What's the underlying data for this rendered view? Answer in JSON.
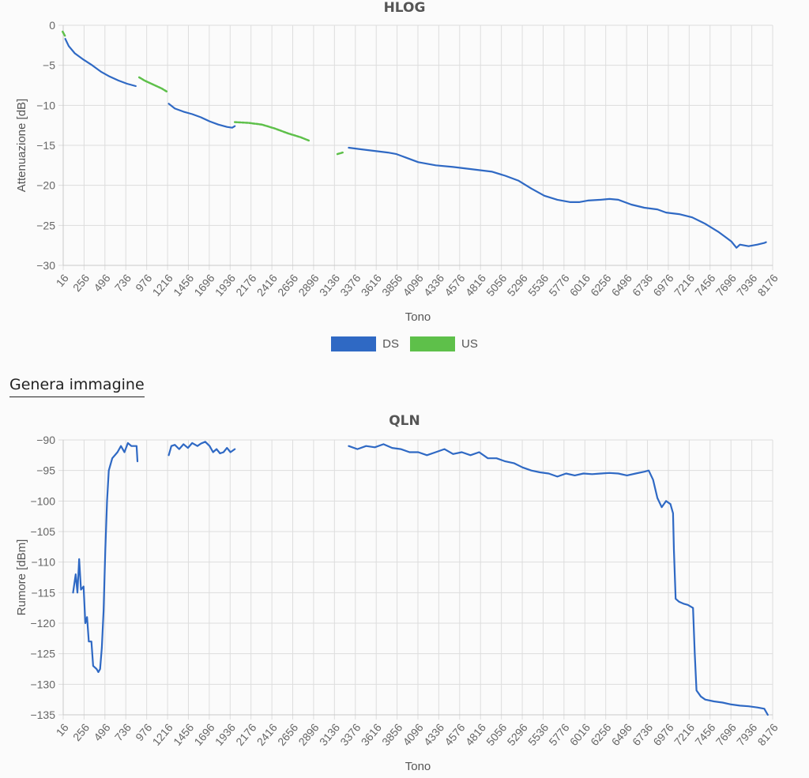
{
  "generate_link": "Genera immagine",
  "colors": {
    "ds": "#2f69c4",
    "us": "#5ec04a",
    "grid": "#dddddd"
  },
  "chart_data": [
    {
      "type": "line",
      "title": "HLOG",
      "xlabel": "Tono",
      "ylabel": "Attenuazione [dB]",
      "xticks": [
        "16",
        "256",
        "496",
        "736",
        "976",
        "1216",
        "1456",
        "1696",
        "1936",
        "2176",
        "2416",
        "2656",
        "2896",
        "3136",
        "3376",
        "3616",
        "3856",
        "4096",
        "4336",
        "4576",
        "4816",
        "5056",
        "5296",
        "5536",
        "5776",
        "6016",
        "6256",
        "6496",
        "6736",
        "6976",
        "7216",
        "7456",
        "7696",
        "7936",
        "8176"
      ],
      "yticks": [
        0,
        -5,
        -10,
        -15,
        -20,
        -25,
        -30
      ],
      "xlim": [
        16,
        8176
      ],
      "ylim": [
        -30,
        0
      ],
      "legend": [
        "DS",
        "US"
      ],
      "legend_position": "bottom",
      "series": [
        {
          "name": "DS",
          "segments": [
            [
              [
                40,
                -1.7
              ],
              [
                80,
                -2.6
              ],
              [
                150,
                -3.5
              ],
              [
                250,
                -4.3
              ],
              [
                350,
                -5.0
              ],
              [
                450,
                -5.8
              ],
              [
                550,
                -6.4
              ],
              [
                650,
                -6.9
              ],
              [
                750,
                -7.3
              ],
              [
                850,
                -7.6
              ]
            ],
            [
              [
                1230,
                -9.8
              ],
              [
                1300,
                -10.4
              ],
              [
                1400,
                -10.8
              ],
              [
                1500,
                -11.1
              ],
              [
                1600,
                -11.5
              ],
              [
                1700,
                -12.0
              ],
              [
                1800,
                -12.4
              ],
              [
                1900,
                -12.7
              ],
              [
                1960,
                -12.8
              ],
              [
                1990,
                -12.6
              ]
            ],
            [
              [
                3300,
                -15.3
              ],
              [
                3450,
                -15.5
              ],
              [
                3600,
                -15.7
              ],
              [
                3750,
                -15.9
              ],
              [
                3850,
                -16.1
              ],
              [
                3950,
                -16.5
              ],
              [
                4100,
                -17.1
              ],
              [
                4300,
                -17.5
              ],
              [
                4500,
                -17.7
              ],
              [
                4650,
                -17.9
              ],
              [
                4800,
                -18.1
              ],
              [
                4950,
                -18.3
              ],
              [
                5100,
                -18.8
              ],
              [
                5250,
                -19.4
              ],
              [
                5400,
                -20.4
              ],
              [
                5550,
                -21.3
              ],
              [
                5700,
                -21.8
              ],
              [
                5850,
                -22.1
              ],
              [
                5950,
                -22.1
              ],
              [
                6050,
                -21.9
              ],
              [
                6200,
                -21.8
              ],
              [
                6300,
                -21.7
              ],
              [
                6400,
                -21.8
              ],
              [
                6550,
                -22.4
              ],
              [
                6700,
                -22.8
              ],
              [
                6850,
                -23.0
              ],
              [
                6950,
                -23.4
              ],
              [
                7100,
                -23.6
              ],
              [
                7250,
                -24.0
              ],
              [
                7400,
                -24.8
              ],
              [
                7550,
                -25.8
              ],
              [
                7650,
                -26.6
              ],
              [
                7700,
                -27.0
              ],
              [
                7760,
                -27.8
              ],
              [
                7800,
                -27.4
              ],
              [
                7900,
                -27.6
              ],
              [
                8000,
                -27.4
              ],
              [
                8080,
                -27.2
              ],
              [
                8100,
                -27.1
              ]
            ]
          ]
        },
        {
          "name": "US",
          "segments": [
            [
              [
                10,
                -0.8
              ],
              [
                35,
                -1.3
              ]
            ],
            [
              [
                890,
                -6.5
              ],
              [
                950,
                -6.9
              ],
              [
                1050,
                -7.4
              ],
              [
                1150,
                -7.9
              ],
              [
                1210,
                -8.3
              ]
            ],
            [
              [
                1990,
                -12.1
              ],
              [
                2150,
                -12.2
              ],
              [
                2300,
                -12.4
              ],
              [
                2450,
                -12.9
              ],
              [
                2600,
                -13.5
              ],
              [
                2750,
                -14.0
              ],
              [
                2840,
                -14.4
              ]
            ],
            [
              [
                3170,
                -16.1
              ],
              [
                3230,
                -15.9
              ]
            ]
          ]
        }
      ]
    },
    {
      "type": "line",
      "title": "QLN",
      "xlabel": "Tono",
      "ylabel": "Rumore [dBm]",
      "xticks": [
        "16",
        "256",
        "496",
        "736",
        "976",
        "1216",
        "1456",
        "1696",
        "1936",
        "2176",
        "2416",
        "2656",
        "2896",
        "3136",
        "3376",
        "3616",
        "3856",
        "4096",
        "4336",
        "4576",
        "4816",
        "5056",
        "5296",
        "5536",
        "5776",
        "6016",
        "6256",
        "6496",
        "6736",
        "6976",
        "7216",
        "7456",
        "7696",
        "7936",
        "8176"
      ],
      "yticks": [
        -90,
        -95,
        -100,
        -105,
        -110,
        -115,
        -120,
        -125,
        -130,
        -135
      ],
      "xlim": [
        16,
        8176
      ],
      "ylim": [
        -135,
        -90
      ],
      "series": [
        {
          "name": "DS",
          "segments": [
            [
              [
                130,
                -115
              ],
              [
                160,
                -112
              ],
              [
                180,
                -115
              ],
              [
                200,
                -109.5
              ],
              [
                220,
                -114.5
              ],
              [
                250,
                -114
              ],
              [
                270,
                -120
              ],
              [
                290,
                -119
              ],
              [
                310,
                -123
              ],
              [
                340,
                -123
              ],
              [
                360,
                -127
              ],
              [
                400,
                -127.5
              ],
              [
                420,
                -128
              ],
              [
                440,
                -127.5
              ],
              [
                460,
                -124
              ],
              [
                480,
                -118
              ],
              [
                500,
                -108
              ],
              [
                520,
                -100
              ],
              [
                540,
                -95
              ],
              [
                580,
                -93
              ],
              [
                640,
                -92
              ],
              [
                680,
                -91
              ],
              [
                720,
                -92
              ],
              [
                760,
                -90.5
              ],
              [
                800,
                -91
              ],
              [
                860,
                -91
              ],
              [
                870,
                -93.5
              ]
            ],
            [
              [
                1230,
                -92.5
              ],
              [
                1260,
                -91
              ],
              [
                1300,
                -90.8
              ],
              [
                1350,
                -91.5
              ],
              [
                1400,
                -90.7
              ],
              [
                1450,
                -91.3
              ],
              [
                1500,
                -90.5
              ],
              [
                1560,
                -91
              ],
              [
                1600,
                -90.6
              ],
              [
                1650,
                -90.3
              ],
              [
                1700,
                -91
              ],
              [
                1740,
                -92
              ],
              [
                1780,
                -91.5
              ],
              [
                1820,
                -92.2
              ],
              [
                1860,
                -92
              ],
              [
                1900,
                -91.3
              ],
              [
                1940,
                -92
              ],
              [
                1990,
                -91.5
              ]
            ],
            [
              [
                3300,
                -91
              ],
              [
                3400,
                -91.5
              ],
              [
                3500,
                -91
              ],
              [
                3600,
                -91.2
              ],
              [
                3700,
                -90.7
              ],
              [
                3800,
                -91.3
              ],
              [
                3900,
                -91.5
              ],
              [
                4000,
                -92
              ],
              [
                4100,
                -92
              ],
              [
                4200,
                -92.5
              ],
              [
                4300,
                -92
              ],
              [
                4400,
                -91.5
              ],
              [
                4500,
                -92.3
              ],
              [
                4600,
                -92
              ],
              [
                4700,
                -92.5
              ],
              [
                4800,
                -92
              ],
              [
                4900,
                -93
              ],
              [
                5000,
                -93
              ],
              [
                5100,
                -93.5
              ],
              [
                5200,
                -93.8
              ],
              [
                5300,
                -94.5
              ],
              [
                5400,
                -95
              ],
              [
                5500,
                -95.3
              ],
              [
                5600,
                -95.5
              ],
              [
                5700,
                -96
              ],
              [
                5800,
                -95.5
              ],
              [
                5900,
                -95.8
              ],
              [
                6000,
                -95.5
              ],
              [
                6100,
                -95.6
              ],
              [
                6200,
                -95.5
              ],
              [
                6300,
                -95.4
              ],
              [
                6400,
                -95.5
              ],
              [
                6500,
                -95.8
              ],
              [
                6600,
                -95.5
              ],
              [
                6700,
                -95.2
              ],
              [
                6750,
                -95
              ],
              [
                6800,
                -96.5
              ],
              [
                6850,
                -99.5
              ],
              [
                6900,
                -101
              ],
              [
                6950,
                -100
              ],
              [
                7000,
                -100.5
              ],
              [
                7030,
                -102
              ],
              [
                7040,
                -108
              ],
              [
                7060,
                -116
              ],
              [
                7100,
                -116.5
              ],
              [
                7150,
                -116.8
              ],
              [
                7200,
                -117
              ],
              [
                7260,
                -117.5
              ],
              [
                7280,
                -125
              ],
              [
                7300,
                -131
              ],
              [
                7350,
                -132
              ],
              [
                7400,
                -132.5
              ],
              [
                7500,
                -132.8
              ],
              [
                7600,
                -133
              ],
              [
                7700,
                -133.3
              ],
              [
                7800,
                -133.5
              ],
              [
                7900,
                -133.6
              ],
              [
                8000,
                -133.8
              ],
              [
                8080,
                -134
              ],
              [
                8120,
                -135
              ]
            ]
          ]
        }
      ]
    }
  ]
}
